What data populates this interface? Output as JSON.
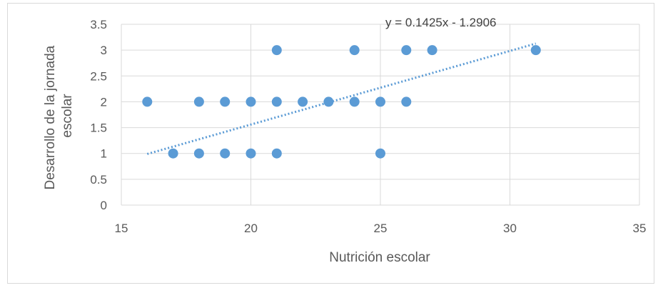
{
  "chart_data": {
    "type": "scatter",
    "xlabel": "Nutrición escolar",
    "ylabel_lines": [
      "Desarrollo de la jornada",
      "escolar"
    ],
    "xlim": [
      15,
      35
    ],
    "ylim": [
      0,
      3.5
    ],
    "xticks": [
      15,
      20,
      25,
      30,
      35
    ],
    "xtick_labels": [
      "15",
      "20",
      "25",
      "30",
      "35"
    ],
    "yticks": [
      0,
      0.5,
      1,
      1.5,
      2,
      2.5,
      3,
      3.5
    ],
    "ytick_labels": [
      "0",
      "0.5",
      "1",
      "1.5",
      "2",
      "2.5",
      "3",
      "3.5"
    ],
    "grid": true,
    "series": [
      {
        "color": "#5b9bd5",
        "points": [
          [
            16,
            2
          ],
          [
            17,
            1
          ],
          [
            18,
            1
          ],
          [
            18,
            2
          ],
          [
            19,
            1
          ],
          [
            19,
            2
          ],
          [
            20,
            1
          ],
          [
            20,
            2
          ],
          [
            21,
            1
          ],
          [
            21,
            2
          ],
          [
            21,
            3
          ],
          [
            22,
            2
          ],
          [
            23,
            2
          ],
          [
            24,
            2
          ],
          [
            24,
            3
          ],
          [
            25,
            1
          ],
          [
            25,
            2
          ],
          [
            26,
            2
          ],
          [
            26,
            3
          ],
          [
            27,
            3
          ],
          [
            31,
            3
          ]
        ]
      }
    ],
    "trendline": {
      "type": "linear",
      "slope": 0.1425,
      "intercept": -1.2906,
      "x_range": [
        16,
        31
      ],
      "label": "y = 0.1425x - 1.2906",
      "style": "dotted",
      "color": "#5b9bd5"
    }
  }
}
